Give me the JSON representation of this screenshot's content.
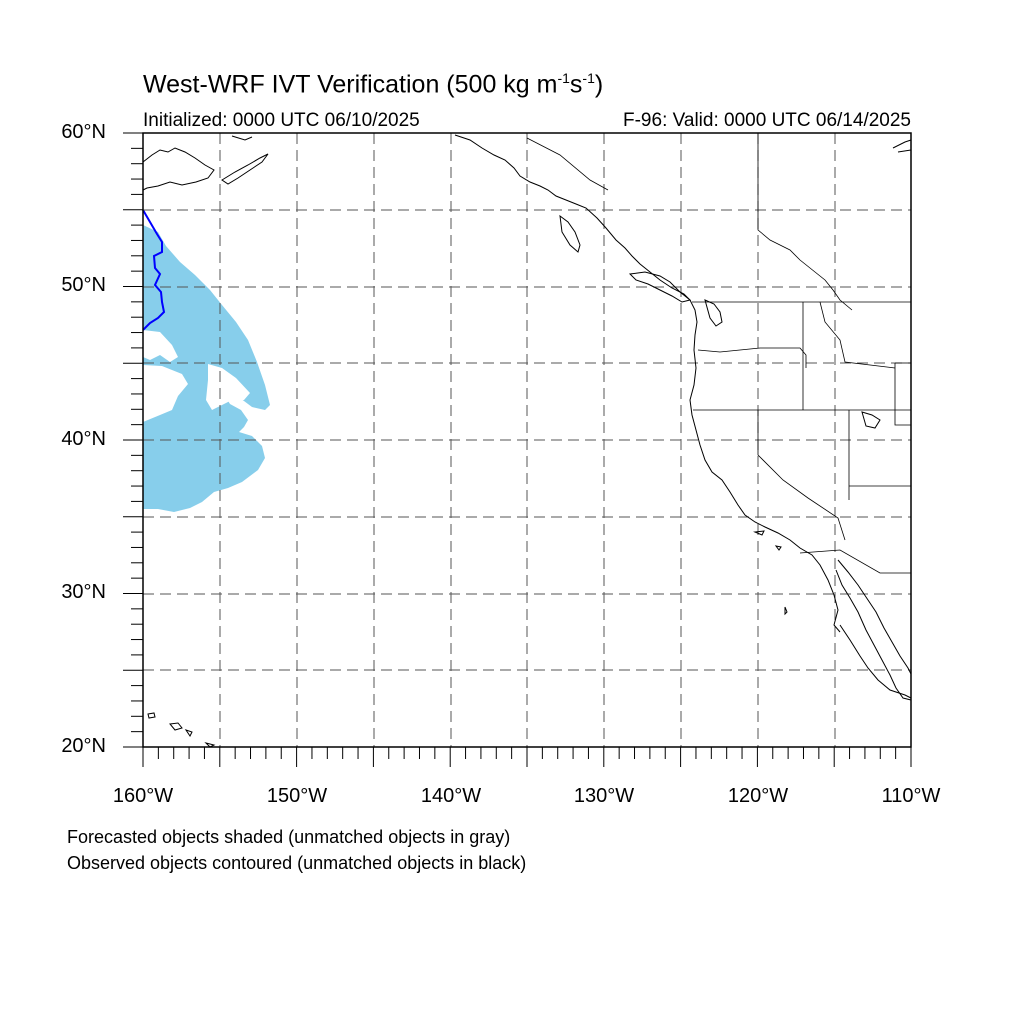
{
  "title": {
    "main": "West-WRF IVT Verification (500 kg m",
    "sup1": "-1",
    "mid": "s",
    "sup2": "-1",
    "end": ")"
  },
  "init_label": "Initialized: 0000 UTC 06/10/2025",
  "valid_label": "F-96: Valid: 0000 UTC 06/14/2025",
  "lat_labels": [
    "60°N",
    "50°N",
    "40°N",
    "30°N",
    "20°N"
  ],
  "lon_labels": [
    "160°W",
    "150°W",
    "140°W",
    "130°W",
    "120°W",
    "110°W"
  ],
  "notes": [
    "Forecasted objects shaded (unmatched objects in gray)",
    "Observed objects contoured (unmatched objects in black)"
  ],
  "colors": {
    "forecast_fill": "#87ceeb",
    "observed_contour": "#0000ff",
    "grid": "#555555",
    "coast": "#000000"
  },
  "map_extent": {
    "lon_min": -160,
    "lon_max": -110,
    "lat_min": 20,
    "lat_max": 60
  }
}
